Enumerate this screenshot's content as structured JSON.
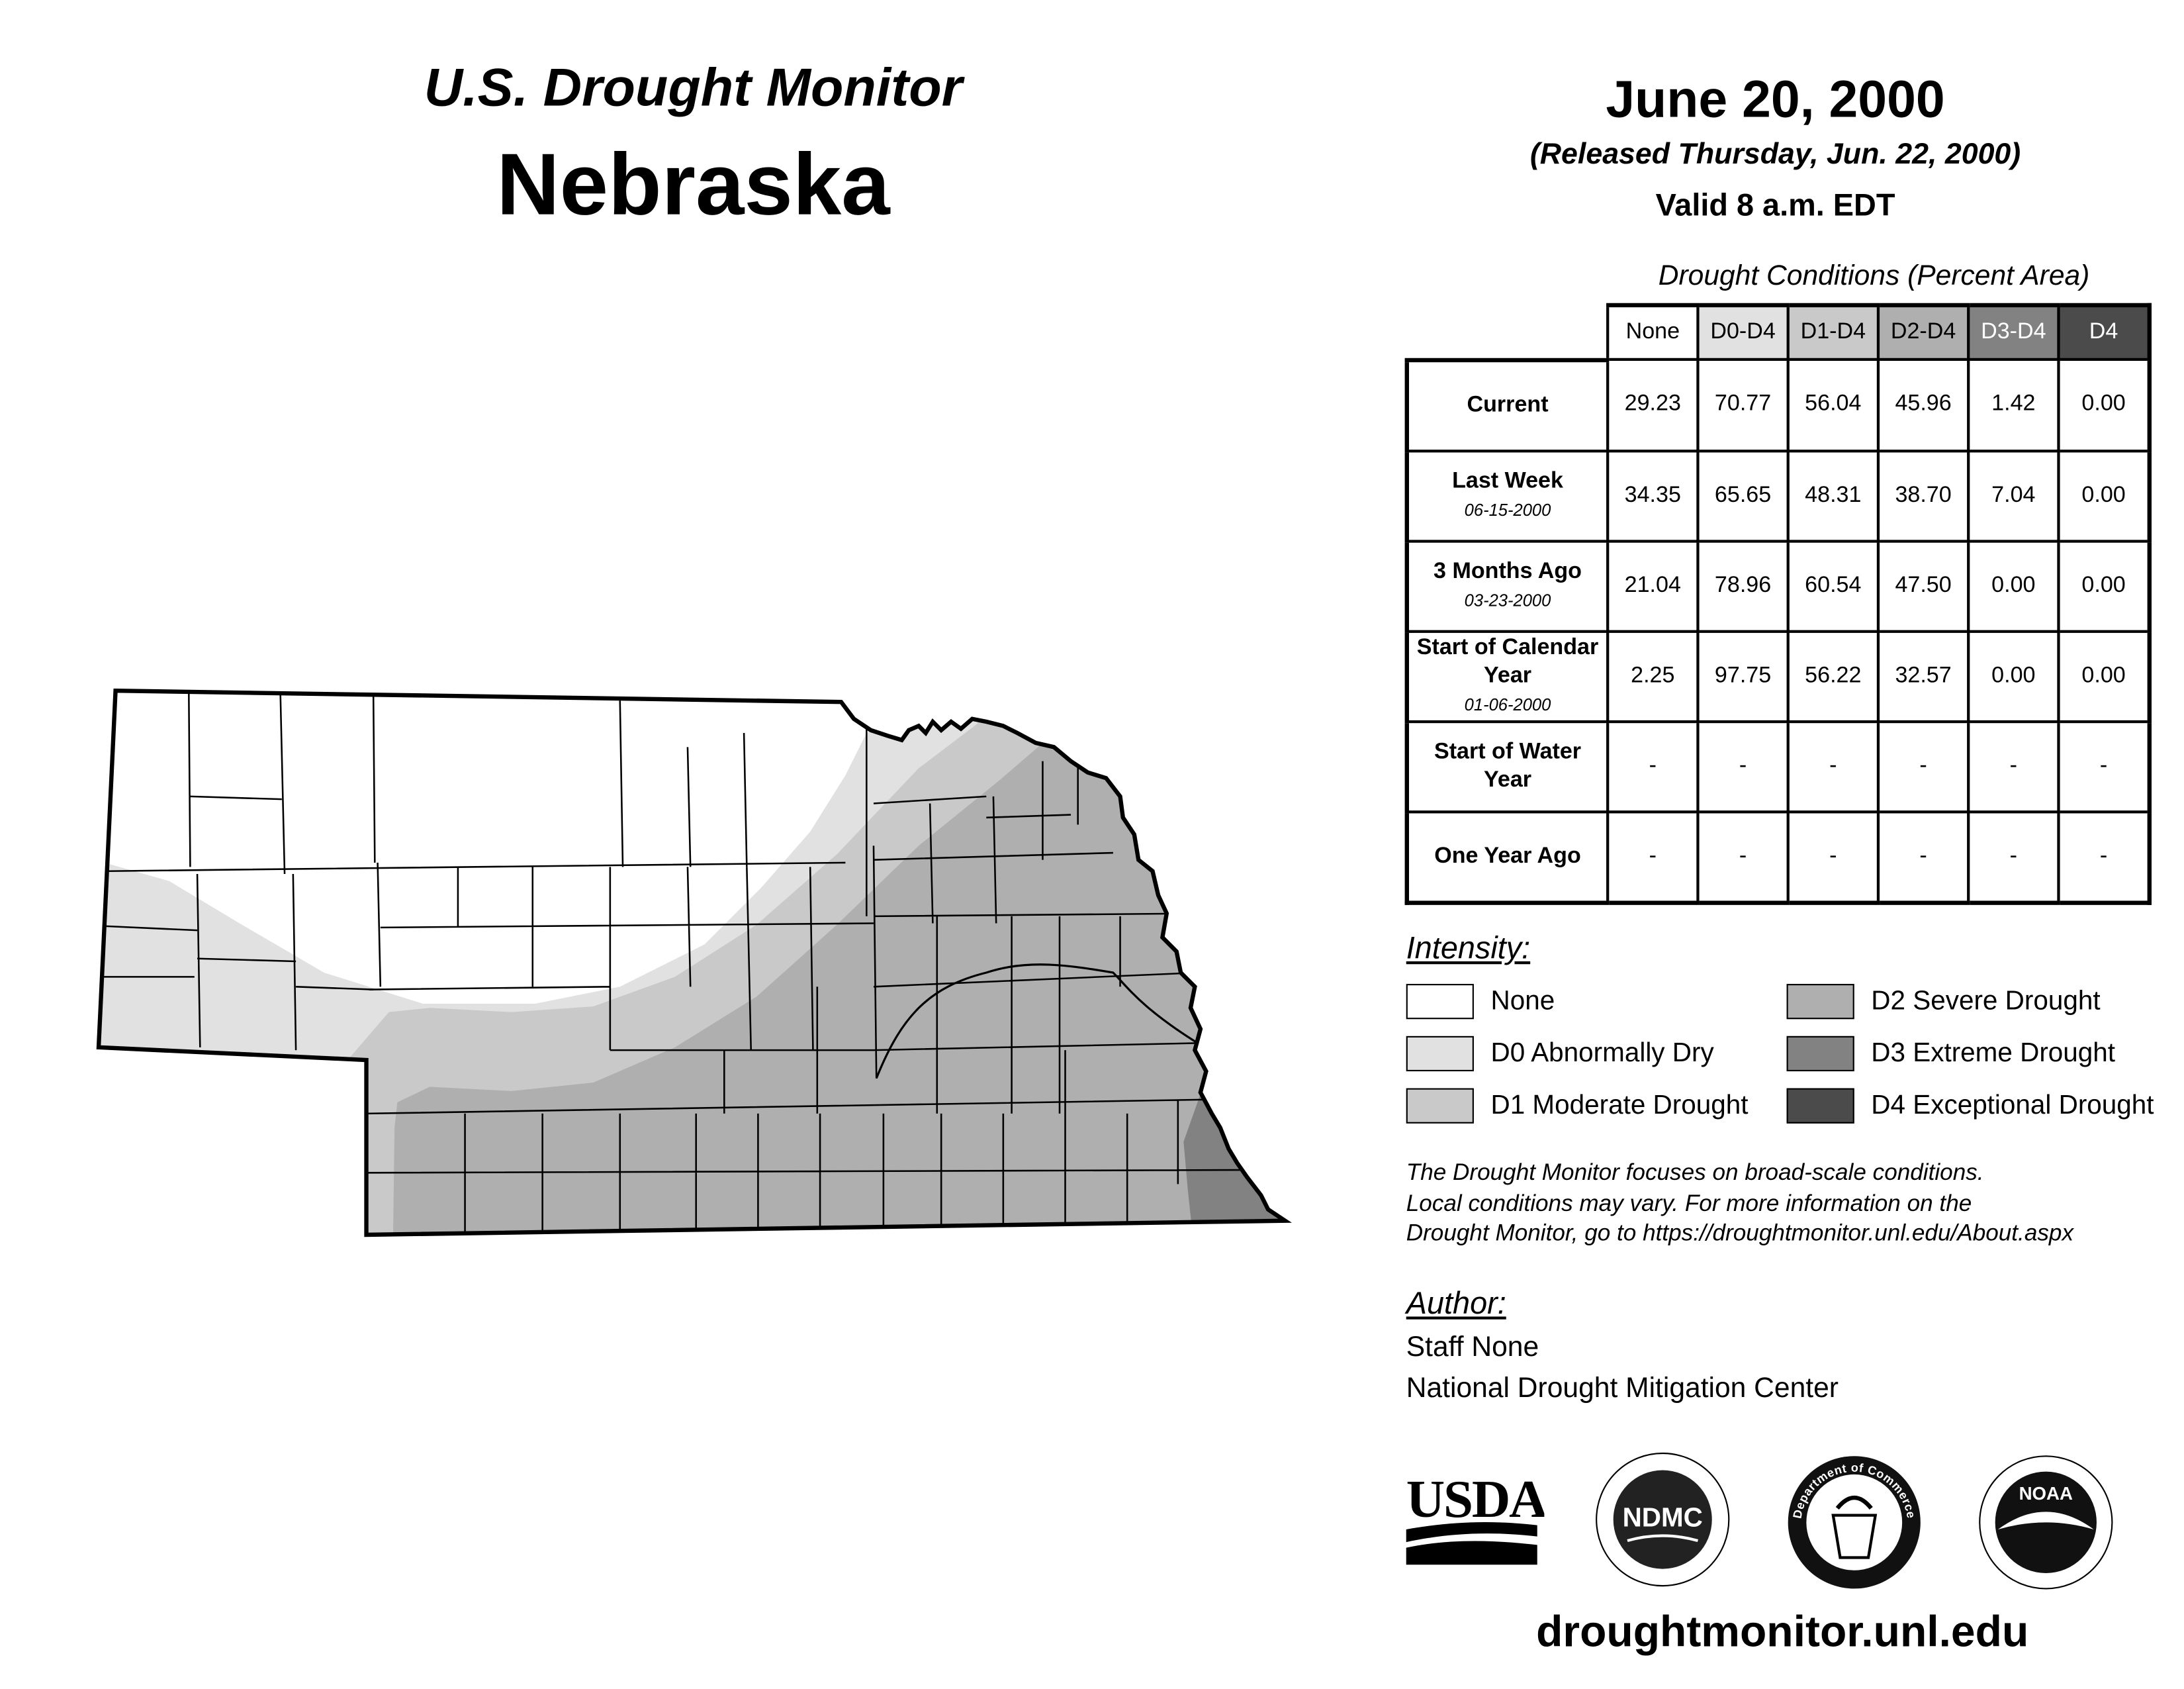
{
  "header": {
    "title": "U.S. Drought Monitor",
    "state": "Nebraska",
    "date": "June 20, 2000",
    "released": "(Released Thursday, Jun. 22, 2000)",
    "valid": "Valid 8 a.m. EDT"
  },
  "table": {
    "title": "Drought Conditions (Percent Area)",
    "columns": [
      "None",
      "D0-D4",
      "D1-D4",
      "D2-D4",
      "D3-D4",
      "D4"
    ],
    "column_colors": [
      "#ffffff",
      "#e1e1e1",
      "#c9c9c9",
      "#afafaf",
      "#828282",
      "#4b4b4b"
    ],
    "rows": [
      {
        "label": "Current",
        "date": "",
        "values": [
          "29.23",
          "70.77",
          "56.04",
          "45.96",
          "1.42",
          "0.00"
        ]
      },
      {
        "label": "Last Week",
        "date": "06-15-2000",
        "values": [
          "34.35",
          "65.65",
          "48.31",
          "38.70",
          "7.04",
          "0.00"
        ]
      },
      {
        "label": "3 Months Ago",
        "date": "03-23-2000",
        "values": [
          "21.04",
          "78.96",
          "60.54",
          "47.50",
          "0.00",
          "0.00"
        ]
      },
      {
        "label": "Start of Calendar Year",
        "date": "01-06-2000",
        "values": [
          "2.25",
          "97.75",
          "56.22",
          "32.57",
          "0.00",
          "0.00"
        ]
      },
      {
        "label": "Start of Water Year",
        "date": "",
        "values": [
          "-",
          "-",
          "-",
          "-",
          "-",
          "-"
        ]
      },
      {
        "label": "One Year Ago",
        "date": "",
        "values": [
          "-",
          "-",
          "-",
          "-",
          "-",
          "-"
        ]
      }
    ]
  },
  "legend": {
    "title": "Intensity:",
    "items": [
      {
        "label": "None",
        "color": "#ffffff"
      },
      {
        "label": "D0 Abnormally Dry",
        "color": "#e1e1e1"
      },
      {
        "label": "D1 Moderate Drought",
        "color": "#c9c9c9"
      },
      {
        "label": "D2 Severe Drought",
        "color": "#afafaf"
      },
      {
        "label": "D3 Extreme Drought",
        "color": "#828282"
      },
      {
        "label": "D4 Exceptional Drought",
        "color": "#4b4b4b"
      }
    ]
  },
  "notes": [
    "The Drought Monitor focuses on broad-scale conditions.",
    "Local conditions may vary. For more information on the",
    "Drought Monitor, go to https://droughtmonitor.unl.edu/About.aspx"
  ],
  "author": {
    "title": "Author:",
    "name": "Staff None",
    "org": "National Drought Mitigation Center"
  },
  "logos": {
    "usda": "USDA",
    "ndmc": "NDMC",
    "doc": "Department of Commerce",
    "noaa": "NOAA"
  },
  "url": "droughtmonitor.unl.edu"
}
